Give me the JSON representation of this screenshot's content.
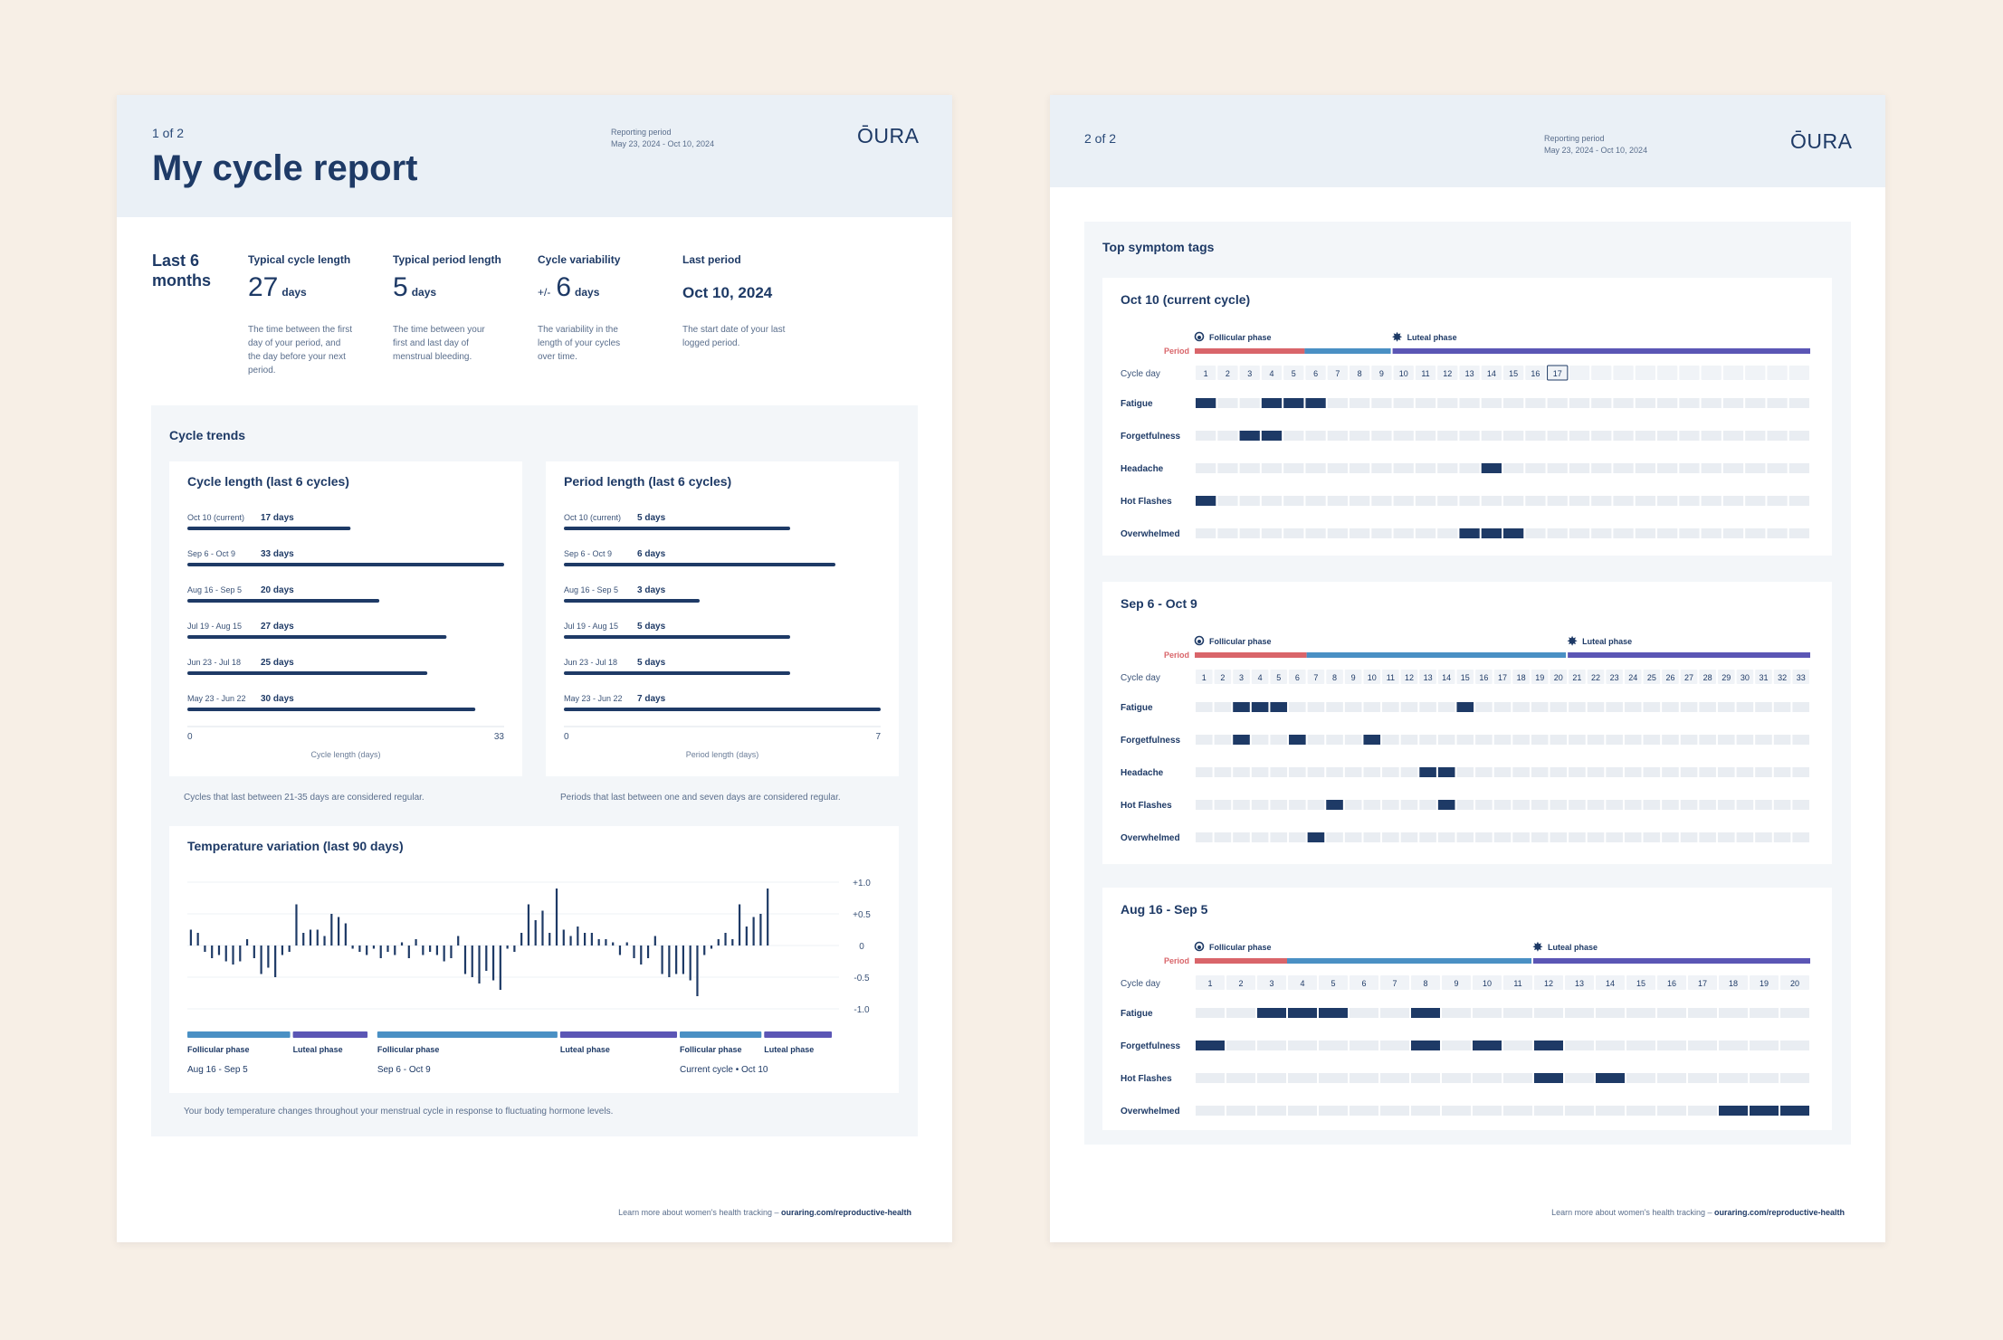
{
  "logo": "ŌURA",
  "page1": {
    "page_num": "1 of 2",
    "reporting_label": "Reporting period",
    "reporting_range": "May 23, 2024 - Oct 10, 2024",
    "title": "My cycle report",
    "range_label": "Last 6 months",
    "stats": {
      "cycle_length": {
        "head": "Typical cycle length",
        "value": "27",
        "unit": "days",
        "desc": "The time between the first day of your period, and the day before your next period."
      },
      "period_length": {
        "head": "Typical period length",
        "value": "5",
        "unit": "days",
        "desc": "The time between your first and last day of menstrual bleeding."
      },
      "variability": {
        "head": "Cycle variability",
        "prefix": "+/-",
        "value": "6",
        "unit": "days",
        "desc": "The variability in the length of your cycles over time."
      },
      "last_period": {
        "head": "Last period",
        "value": "Oct 10, 2024",
        "desc": "The start date of your last logged period."
      }
    },
    "trends_title": "Cycle trends",
    "cycle_note": "Cycles that last between 21-35 days are considered regular.",
    "period_note": "Periods that last between one and seven days are considered regular.",
    "temp_note": "Your body temperature changes throughout your menstrual cycle in response to fluctuating hormone levels.",
    "footer_text": "Learn more about women's health tracking – ",
    "footer_link": "ouraring.com/reproductive-health"
  },
  "page2": {
    "page_num": "2 of 2",
    "reporting_label": "Reporting period",
    "reporting_range": "May 23, 2024 - Oct 10, 2024",
    "section_title": "Top symptom tags",
    "footer_text": "Learn more about women's health tracking – ",
    "footer_link": "ouraring.com/reproductive-health"
  },
  "chart_data": [
    {
      "type": "bar",
      "title": "Cycle length (last 6 cycles)",
      "xlabel": "Cycle length (days)",
      "xlim": [
        0,
        33
      ],
      "categories": [
        "Oct 10 (current)",
        "Sep 6 - Oct 9",
        "Aug 16 - Sep 5",
        "Jul 19 - Aug 15",
        "Jun 23 - Jul 18",
        "May 23 - Jun 22"
      ],
      "values": [
        17,
        33,
        20,
        27,
        25,
        30
      ],
      "value_labels": [
        "17 days",
        "33 days",
        "20 days",
        "27 days",
        "25 days",
        "30 days"
      ],
      "tick_labels": [
        "0",
        "33"
      ]
    },
    {
      "type": "bar",
      "title": "Period length (last 6 cycles)",
      "xlabel": "Period length (days)",
      "xlim": [
        0,
        7
      ],
      "categories": [
        "Oct 10 (current)",
        "Sep 6 - Oct 9",
        "Aug 16 - Sep 5",
        "Jul 19 - Aug 15",
        "Jun 23 - Jul 18",
        "May 23 - Jun 22"
      ],
      "values": [
        5,
        6,
        3,
        5,
        5,
        7
      ],
      "value_labels": [
        "5 days",
        "6 days",
        "3 days",
        "5 days",
        "5 days",
        "7 days"
      ],
      "tick_labels": [
        "0",
        "7"
      ]
    },
    {
      "type": "bar",
      "title": "Temperature variation (last 90 days)",
      "ylim": [
        -1.0,
        1.0
      ],
      "y_ticks": [
        "+1.0",
        "+0.5",
        "0",
        "-0.5",
        "-1.0"
      ],
      "values": [
        0.25,
        0.2,
        -0.1,
        -0.2,
        -0.15,
        -0.25,
        -0.3,
        -0.25,
        0.1,
        -0.2,
        -0.45,
        -0.35,
        -0.5,
        -0.15,
        -0.1,
        0.65,
        0.2,
        0.25,
        0.25,
        0.15,
        0.5,
        0.45,
        0.35,
        -0.05,
        -0.1,
        -0.15,
        -0.05,
        -0.2,
        -0.1,
        -0.15,
        0.05,
        -0.2,
        0.1,
        -0.15,
        -0.1,
        -0.15,
        -0.25,
        -0.2,
        0.15,
        -0.45,
        -0.5,
        -0.6,
        -0.4,
        -0.55,
        -0.7,
        -0.05,
        -0.1,
        0.2,
        0.65,
        0.4,
        0.55,
        0.2,
        0.9,
        0.25,
        0.15,
        0.3,
        0.2,
        0.2,
        0.1,
        0.1,
        0.05,
        -0.15,
        0.05,
        -0.2,
        -0.3,
        -0.2,
        0.15,
        -0.45,
        -0.5,
        -0.45,
        -0.45,
        -0.55,
        -0.8,
        -0.15,
        -0.05,
        0.1,
        0.2,
        0.1,
        0.65,
        0.3,
        0.45,
        0.5,
        0.9
      ],
      "phases": [
        {
          "label": "Follicular phase",
          "kind": "follicular",
          "start": 0,
          "end": 15
        },
        {
          "label": "Luteal phase",
          "kind": "luteal",
          "start": 15,
          "end": 26
        },
        {
          "label": "Follicular phase",
          "kind": "follicular",
          "start": 27,
          "end": 53
        },
        {
          "label": "Luteal phase",
          "kind": "luteal",
          "start": 53,
          "end": 70
        },
        {
          "label": "Follicular phase",
          "kind": "follicular",
          "start": 70,
          "end": 82
        },
        {
          "label": "Luteal phase",
          "kind": "luteal",
          "start": 82,
          "end": 92
        }
      ],
      "cycle_labels": [
        {
          "label": "Aug 16 - Sep 5",
          "at": 0
        },
        {
          "label": "Sep 6 - Oct 9",
          "at": 27
        },
        {
          "label": "Current cycle • Oct 10",
          "at": 70
        }
      ],
      "total_slots": 92
    },
    {
      "type": "heatmap",
      "title": "Oct 10  (current cycle)",
      "follicular_label": "Follicular phase",
      "luteal_label": "Luteal phase",
      "period_label": "Period",
      "cycle_day_label": "Cycle day",
      "cols": 28,
      "days_shown": 17,
      "current_day": 17,
      "period_days": 5,
      "luteal_start": 10,
      "symptoms": [
        {
          "name": "Fatigue",
          "days": [
            1,
            4,
            5,
            6
          ]
        },
        {
          "name": "Forgetfulness",
          "days": [
            3,
            4
          ]
        },
        {
          "name": "Headache",
          "days": [
            14
          ]
        },
        {
          "name": "Hot Flashes",
          "days": [
            1
          ]
        },
        {
          "name": "Overwhelmed",
          "days": [
            13,
            14,
            15
          ]
        }
      ]
    },
    {
      "type": "heatmap",
      "title": "Sep 6 - Oct 9",
      "follicular_label": "Follicular phase",
      "luteal_label": "Luteal phase",
      "period_label": "Period",
      "cycle_day_label": "Cycle day",
      "cols": 33,
      "days_shown": 33,
      "period_days": 6,
      "luteal_start": 21,
      "symptoms": [
        {
          "name": "Fatigue",
          "days": [
            3,
            4,
            5,
            15
          ]
        },
        {
          "name": "Forgetfulness",
          "days": [
            3,
            6,
            10
          ]
        },
        {
          "name": "Headache",
          "days": [
            13,
            14
          ]
        },
        {
          "name": "Hot Flashes",
          "days": [
            8,
            14
          ]
        },
        {
          "name": "Overwhelmed",
          "days": [
            7
          ]
        }
      ]
    },
    {
      "type": "heatmap",
      "title": "Aug 16 - Sep 5",
      "follicular_label": "Follicular phase",
      "luteal_label": "Luteal phase",
      "period_label": "Period",
      "cycle_day_label": "Cycle day",
      "cols": 20,
      "days_shown": 20,
      "period_days": 3,
      "luteal_start": 12,
      "symptoms": [
        {
          "name": "Fatigue",
          "days": [
            3,
            4,
            5,
            8
          ]
        },
        {
          "name": "Forgetfulness",
          "days": [
            1,
            8,
            10,
            12
          ]
        },
        {
          "name": "Hot Flashes",
          "days": [
            12,
            14
          ]
        },
        {
          "name": "Overwhelmed",
          "days": [
            18,
            19,
            20
          ]
        }
      ]
    }
  ],
  "colors": {
    "navy": "#1e3a66",
    "period": "#d9656a",
    "follicular": "#4a90c4",
    "luteal": "#5b56b5",
    "empty_cell": "#e9edf2"
  }
}
